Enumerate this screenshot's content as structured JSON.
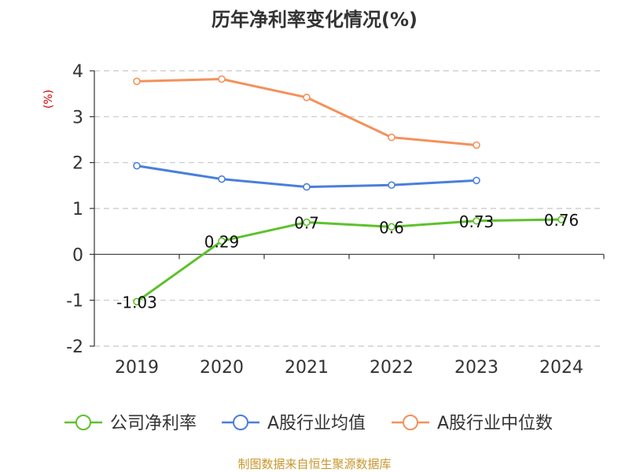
{
  "chart_data": {
    "type": "line",
    "title": "历年净利率变化情况(%)",
    "ylabel": "(%)",
    "xlabel": "",
    "categories": [
      "2019",
      "2020",
      "2021",
      "2022",
      "2023",
      "2024"
    ],
    "ylim": [
      -2,
      4
    ],
    "yticks": [
      "4",
      "3",
      "2",
      "1",
      "0",
      "-1",
      "-2"
    ],
    "ytick_values": [
      4,
      3,
      2,
      1,
      0,
      -1,
      -2
    ],
    "grid": true,
    "legend_position": "bottom",
    "series": [
      {
        "name": "公司净利率",
        "color": "#5ec12c",
        "values": [
          -1.03,
          0.29,
          0.7,
          0.6,
          0.73,
          0.76
        ],
        "labels": [
          "-1.03",
          "0.29",
          "0.7",
          "0.6",
          "0.73",
          "0.76"
        ]
      },
      {
        "name": "A股行业均值",
        "color": "#4a7fdb",
        "values": [
          1.93,
          1.64,
          1.47,
          1.51,
          1.61,
          null
        ],
        "labels": []
      },
      {
        "name": "A股行业中位数",
        "color": "#f4915b",
        "values": [
          3.77,
          3.82,
          3.42,
          2.55,
          2.38,
          null
        ],
        "labels": []
      }
    ]
  },
  "source": "制图数据来自恒生聚源数据库",
  "colors": {
    "title": "#333333",
    "unit": "#cc0000",
    "source": "#c9962d",
    "axis": "#333333",
    "grid": "#c8c8c8"
  }
}
